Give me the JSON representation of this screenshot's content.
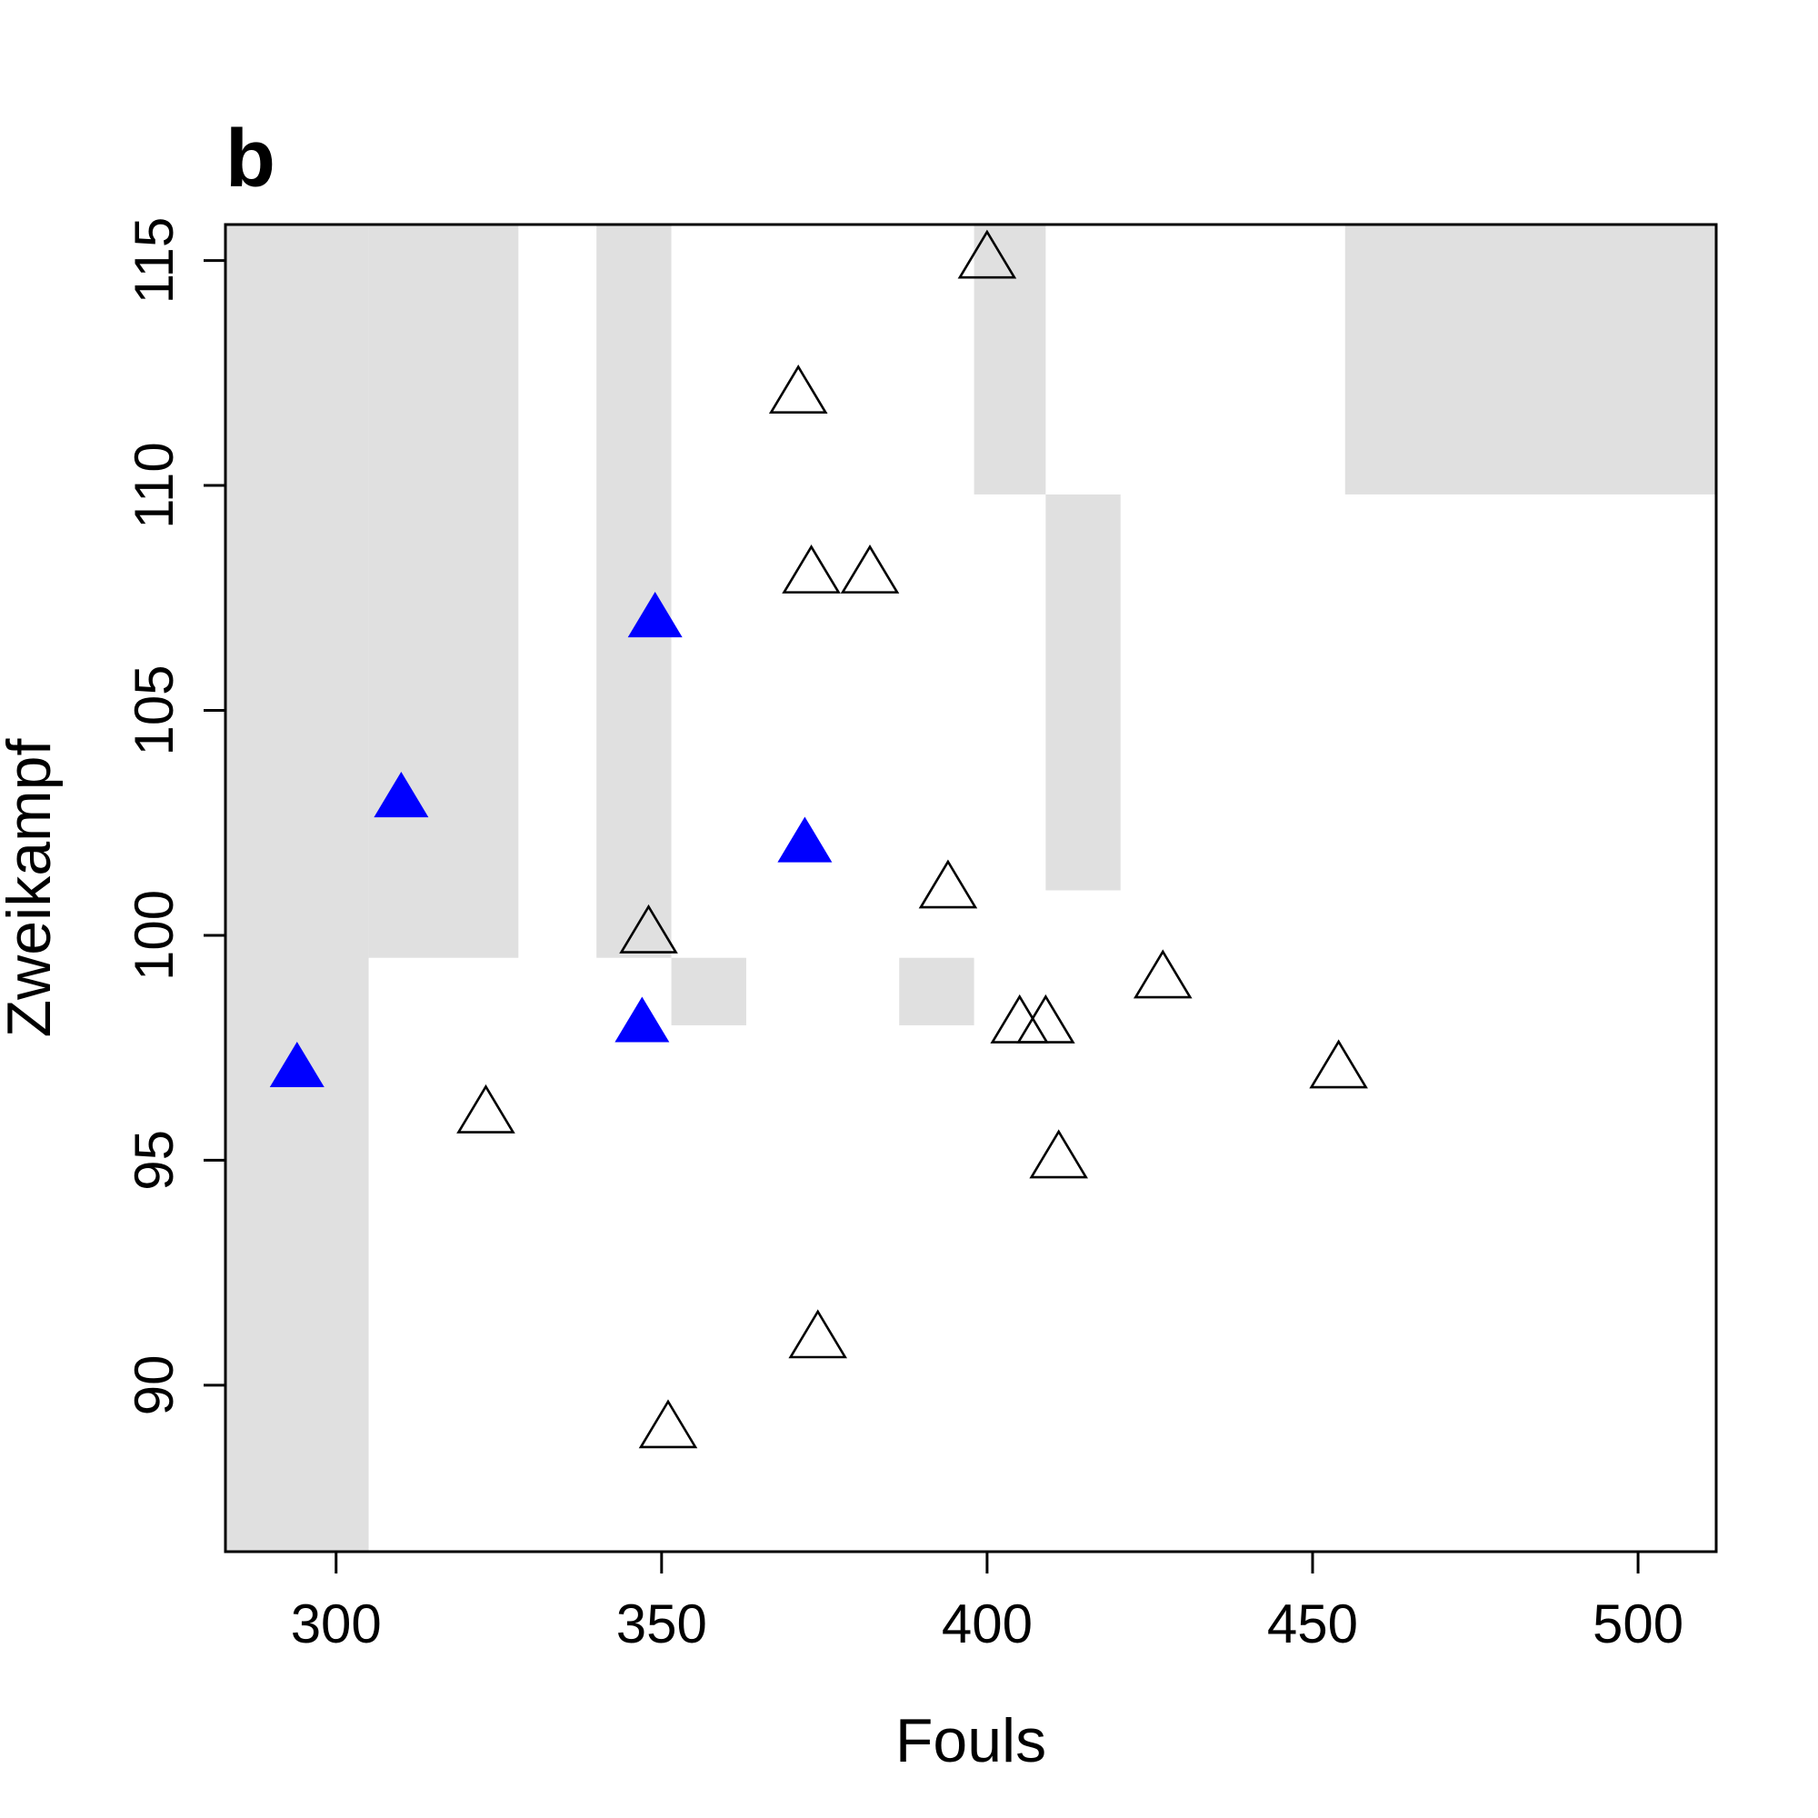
{
  "chart_data": {
    "type": "scatter",
    "panel_label": "b",
    "xlabel": "Fouls",
    "ylabel": "Zweikampf",
    "xlim": [
      283,
      512
    ],
    "ylim": [
      86.3,
      115.8
    ],
    "x_ticks": [
      300,
      350,
      400,
      450,
      500
    ],
    "y_ticks": [
      90,
      95,
      100,
      105,
      110,
      115
    ],
    "grid": false,
    "legend": "none",
    "colors": {
      "shaded_region": "#e0e0e0",
      "filled_marker": "#0000ff",
      "open_marker_stroke": "#000000",
      "axis": "#000000"
    },
    "shaded_regions": [
      {
        "x0": 283,
        "x1": 305,
        "y0": 86.3,
        "y1": 115.8
      },
      {
        "x0": 305,
        "x1": 328,
        "y0": 99.5,
        "y1": 115.8
      },
      {
        "x0": 340,
        "x1": 351.5,
        "y0": 99.5,
        "y1": 115.8
      },
      {
        "x0": 351.5,
        "x1": 363,
        "y0": 98.0,
        "y1": 99.5
      },
      {
        "x0": 386.5,
        "x1": 398,
        "y0": 98.0,
        "y1": 99.5
      },
      {
        "x0": 398,
        "x1": 409,
        "y0": 109.8,
        "y1": 115.8
      },
      {
        "x0": 409,
        "x1": 420.5,
        "y0": 101.0,
        "y1": 109.8
      },
      {
        "x0": 455,
        "x1": 512,
        "y0": 109.8,
        "y1": 115.8
      }
    ],
    "series": [
      {
        "marker": "filled-triangle",
        "color": "#0000ff",
        "points": [
          {
            "x": 294,
            "y": 97
          },
          {
            "x": 310,
            "y": 103
          },
          {
            "x": 347,
            "y": 98
          },
          {
            "x": 349,
            "y": 107
          },
          {
            "x": 372,
            "y": 102
          }
        ]
      },
      {
        "marker": "open-triangle",
        "color": "#000000",
        "points": [
          {
            "x": 323,
            "y": 96
          },
          {
            "x": 348,
            "y": 100
          },
          {
            "x": 351,
            "y": 89
          },
          {
            "x": 371,
            "y": 112
          },
          {
            "x": 373,
            "y": 108
          },
          {
            "x": 374,
            "y": 91
          },
          {
            "x": 382,
            "y": 108
          },
          {
            "x": 394,
            "y": 101
          },
          {
            "x": 400,
            "y": 115
          },
          {
            "x": 405,
            "y": 98
          },
          {
            "x": 409,
            "y": 98
          },
          {
            "x": 411,
            "y": 95
          },
          {
            "x": 427,
            "y": 99
          },
          {
            "x": 454,
            "y": 97
          }
        ]
      }
    ]
  }
}
